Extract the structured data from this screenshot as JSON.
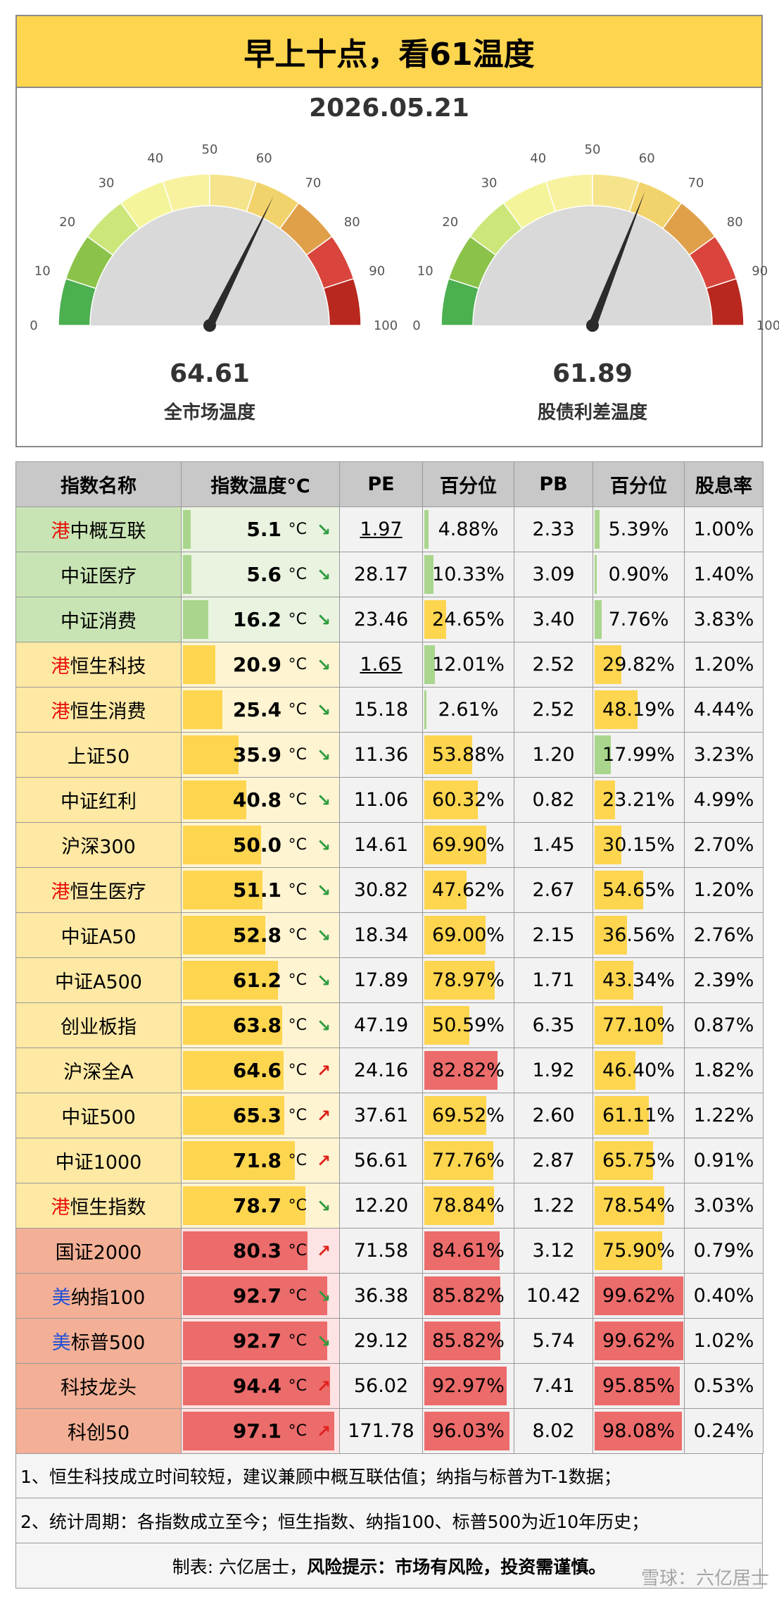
{
  "title": "早上十点，看61温度",
  "date": "2026.05.21",
  "gauges": [
    {
      "value": "64.61",
      "value_num": 64.61,
      "label": "全市场温度"
    },
    {
      "value": "61.89",
      "value_num": 61.89,
      "label": "股债利差温度"
    }
  ],
  "gauge_ticks": [
    "0",
    "10",
    "20",
    "30",
    "40",
    "50",
    "60",
    "70",
    "80",
    "90",
    "100"
  ],
  "table": {
    "headers": [
      "指数名称",
      "指数温度°C",
      "PE",
      "百分位",
      "PB",
      "百分位",
      "股息率"
    ],
    "unit": "°C",
    "rows": [
      {
        "prefix": "港",
        "market": "hk",
        "name": "中概互联",
        "temp": "5.1",
        "temp_num": 5.1,
        "trend": "down",
        "pe": "1.97",
        "pe_ul": true,
        "pe_pct": "4.88%",
        "pe_pct_num": 4.88,
        "pb": "2.33",
        "pb_pct": "5.39%",
        "pb_pct_num": 5.39,
        "dy": "1.00%",
        "tier": "green"
      },
      {
        "prefix": "",
        "market": "",
        "name": "中证医疗",
        "temp": "5.6",
        "temp_num": 5.6,
        "trend": "down",
        "pe": "28.17",
        "pe_ul": false,
        "pe_pct": "10.33%",
        "pe_pct_num": 10.33,
        "pb": "3.09",
        "pb_pct": "0.90%",
        "pb_pct_num": 0.9,
        "dy": "1.40%",
        "tier": "green"
      },
      {
        "prefix": "",
        "market": "",
        "name": "中证消费",
        "temp": "16.2",
        "temp_num": 16.2,
        "trend": "down",
        "pe": "23.46",
        "pe_ul": false,
        "pe_pct": "24.65%",
        "pe_pct_num": 24.65,
        "pb": "3.40",
        "pb_pct": "7.76%",
        "pb_pct_num": 7.76,
        "dy": "3.83%",
        "tier": "green"
      },
      {
        "prefix": "港",
        "market": "hk",
        "name": "恒生科技",
        "temp": "20.9",
        "temp_num": 20.9,
        "trend": "down",
        "pe": "1.65",
        "pe_ul": true,
        "pe_pct": "12.01%",
        "pe_pct_num": 12.01,
        "pb": "2.52",
        "pb_pct": "29.82%",
        "pb_pct_num": 29.82,
        "dy": "1.20%",
        "tier": "yellow"
      },
      {
        "prefix": "港",
        "market": "hk",
        "name": "恒生消费",
        "temp": "25.4",
        "temp_num": 25.4,
        "trend": "down",
        "pe": "15.18",
        "pe_ul": false,
        "pe_pct": "2.61%",
        "pe_pct_num": 2.61,
        "pb": "2.52",
        "pb_pct": "48.19%",
        "pb_pct_num": 48.19,
        "dy": "4.44%",
        "tier": "yellow"
      },
      {
        "prefix": "",
        "market": "",
        "name": "上证50",
        "temp": "35.9",
        "temp_num": 35.9,
        "trend": "down",
        "pe": "11.36",
        "pe_ul": false,
        "pe_pct": "53.88%",
        "pe_pct_num": 53.88,
        "pb": "1.20",
        "pb_pct": "17.99%",
        "pb_pct_num": 17.99,
        "dy": "3.23%",
        "tier": "yellow"
      },
      {
        "prefix": "",
        "market": "",
        "name": "中证红利",
        "temp": "40.8",
        "temp_num": 40.8,
        "trend": "down",
        "pe": "11.06",
        "pe_ul": false,
        "pe_pct": "60.32%",
        "pe_pct_num": 60.32,
        "pb": "0.82",
        "pb_pct": "23.21%",
        "pb_pct_num": 23.21,
        "dy": "4.99%",
        "tier": "yellow"
      },
      {
        "prefix": "",
        "market": "",
        "name": "沪深300",
        "temp": "50.0",
        "temp_num": 50.0,
        "trend": "down",
        "pe": "14.61",
        "pe_ul": false,
        "pe_pct": "69.90%",
        "pe_pct_num": 69.9,
        "pb": "1.45",
        "pb_pct": "30.15%",
        "pb_pct_num": 30.15,
        "dy": "2.70%",
        "tier": "yellow"
      },
      {
        "prefix": "港",
        "market": "hk",
        "name": "恒生医疗",
        "temp": "51.1",
        "temp_num": 51.1,
        "trend": "down",
        "pe": "30.82",
        "pe_ul": false,
        "pe_pct": "47.62%",
        "pe_pct_num": 47.62,
        "pb": "2.67",
        "pb_pct": "54.65%",
        "pb_pct_num": 54.65,
        "dy": "1.20%",
        "tier": "yellow"
      },
      {
        "prefix": "",
        "market": "",
        "name": "中证A50",
        "temp": "52.8",
        "temp_num": 52.8,
        "trend": "down",
        "pe": "18.34",
        "pe_ul": false,
        "pe_pct": "69.00%",
        "pe_pct_num": 69.0,
        "pb": "2.15",
        "pb_pct": "36.56%",
        "pb_pct_num": 36.56,
        "dy": "2.76%",
        "tier": "yellow"
      },
      {
        "prefix": "",
        "market": "",
        "name": "中证A500",
        "temp": "61.2",
        "temp_num": 61.2,
        "trend": "down",
        "pe": "17.89",
        "pe_ul": false,
        "pe_pct": "78.97%",
        "pe_pct_num": 78.97,
        "pb": "1.71",
        "pb_pct": "43.34%",
        "pb_pct_num": 43.34,
        "dy": "2.39%",
        "tier": "yellow"
      },
      {
        "prefix": "",
        "market": "",
        "name": "创业板指",
        "temp": "63.8",
        "temp_num": 63.8,
        "trend": "down",
        "pe": "47.19",
        "pe_ul": false,
        "pe_pct": "50.59%",
        "pe_pct_num": 50.59,
        "pb": "6.35",
        "pb_pct": "77.10%",
        "pb_pct_num": 77.1,
        "dy": "0.87%",
        "tier": "yellow"
      },
      {
        "prefix": "",
        "market": "",
        "name": "沪深全A",
        "temp": "64.6",
        "temp_num": 64.6,
        "trend": "up",
        "pe": "24.16",
        "pe_ul": false,
        "pe_pct": "82.82%",
        "pe_pct_num": 82.82,
        "pb": "1.92",
        "pb_pct": "46.40%",
        "pb_pct_num": 46.4,
        "dy": "1.82%",
        "tier": "yellow"
      },
      {
        "prefix": "",
        "market": "",
        "name": "中证500",
        "temp": "65.3",
        "temp_num": 65.3,
        "trend": "up",
        "pe": "37.61",
        "pe_ul": false,
        "pe_pct": "69.52%",
        "pe_pct_num": 69.52,
        "pb": "2.60",
        "pb_pct": "61.11%",
        "pb_pct_num": 61.11,
        "dy": "1.22%",
        "tier": "yellow"
      },
      {
        "prefix": "",
        "market": "",
        "name": "中证1000",
        "temp": "71.8",
        "temp_num": 71.8,
        "trend": "up",
        "pe": "56.61",
        "pe_ul": false,
        "pe_pct": "77.76%",
        "pe_pct_num": 77.76,
        "pb": "2.87",
        "pb_pct": "65.75%",
        "pb_pct_num": 65.75,
        "dy": "0.91%",
        "tier": "yellow"
      },
      {
        "prefix": "港",
        "market": "hk",
        "name": "恒生指数",
        "temp": "78.7",
        "temp_num": 78.7,
        "trend": "down",
        "pe": "12.20",
        "pe_ul": false,
        "pe_pct": "78.84%",
        "pe_pct_num": 78.84,
        "pb": "1.22",
        "pb_pct": "78.54%",
        "pb_pct_num": 78.54,
        "dy": "3.03%",
        "tier": "yellow"
      },
      {
        "prefix": "",
        "market": "",
        "name": "国证2000",
        "temp": "80.3",
        "temp_num": 80.3,
        "trend": "up",
        "pe": "71.58",
        "pe_ul": false,
        "pe_pct": "84.61%",
        "pe_pct_num": 84.61,
        "pb": "3.12",
        "pb_pct": "75.90%",
        "pb_pct_num": 75.9,
        "dy": "0.79%",
        "tier": "red"
      },
      {
        "prefix": "美",
        "market": "us",
        "name": "纳指100",
        "temp": "92.7",
        "temp_num": 92.7,
        "trend": "down",
        "pe": "36.38",
        "pe_ul": false,
        "pe_pct": "85.82%",
        "pe_pct_num": 85.82,
        "pb": "10.42",
        "pb_pct": "99.62%",
        "pb_pct_num": 99.62,
        "dy": "0.40%",
        "tier": "red"
      },
      {
        "prefix": "美",
        "market": "us",
        "name": "标普500",
        "temp": "92.7",
        "temp_num": 92.7,
        "trend": "down",
        "pe": "29.12",
        "pe_ul": false,
        "pe_pct": "85.82%",
        "pe_pct_num": 85.82,
        "pb": "5.74",
        "pb_pct": "99.62%",
        "pb_pct_num": 99.62,
        "dy": "1.02%",
        "tier": "red"
      },
      {
        "prefix": "",
        "market": "",
        "name": "科技龙头",
        "temp": "94.4",
        "temp_num": 94.4,
        "trend": "up",
        "pe": "56.02",
        "pe_ul": false,
        "pe_pct": "92.97%",
        "pe_pct_num": 92.97,
        "pb": "7.41",
        "pb_pct": "95.85%",
        "pb_pct_num": 95.85,
        "dy": "0.53%",
        "tier": "red"
      },
      {
        "prefix": "",
        "market": "",
        "name": "科创50",
        "temp": "97.1",
        "temp_num": 97.1,
        "trend": "up",
        "pe": "171.78",
        "pe_ul": false,
        "pe_pct": "96.03%",
        "pe_pct_num": 96.03,
        "pb": "8.02",
        "pb_pct": "98.08%",
        "pb_pct_num": 98.08,
        "dy": "0.24%",
        "tier": "red"
      }
    ]
  },
  "notes": [
    "1、恒生科技成立时间较短，建议兼顾中概互联估值；纳指与标普为T-1数据；",
    "2、统计周期：各指数成立至今；恒生指数、纳指100、标普500为近10年历史；"
  ],
  "footer": {
    "author": "制表: 六亿居士，",
    "risk_label": "风险提示：",
    "risk_text": "市场有风险，投资需谨慎。"
  },
  "watermark": "雪球：六亿居士",
  "colors": {
    "title_bg": "#fdd54f",
    "tier_green": "#c9e4b4",
    "tier_yellow": "#fde8a4",
    "tier_red": "#f3b096",
    "bar_green": "#a9d68c",
    "bar_yellow": "#fdd54f",
    "bar_red": "#ec6b6b",
    "trend_up": "#e0201a",
    "trend_down": "#2e9c3e"
  }
}
